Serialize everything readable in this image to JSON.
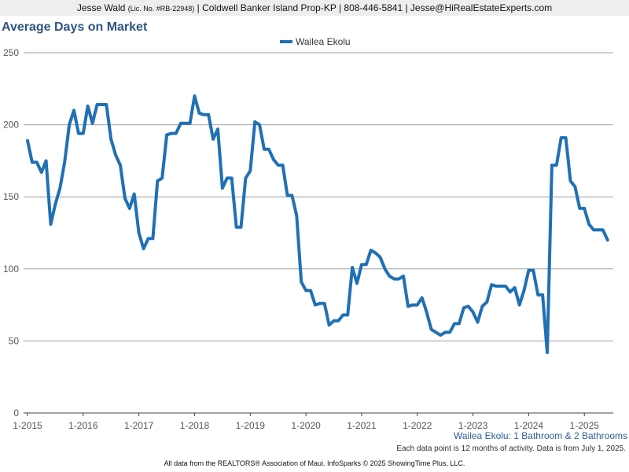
{
  "header": {
    "name": "Jesse Wald",
    "license": "(Lic. No. #RB-22948)",
    "rest": "| Coldwell Banker Island Prop-KP | 808-446-5841 | Jesse@HiRealEstateExperts.com"
  },
  "chart_data": {
    "type": "line",
    "title": "Average Days on Market",
    "xlabel": "",
    "ylabel": "",
    "ylim": [
      0,
      250
    ],
    "yticks": [
      "0",
      "50",
      "100",
      "150",
      "200",
      "250"
    ],
    "xticks": [
      "1-2015",
      "1-2016",
      "1-2017",
      "1-2018",
      "1-2019",
      "1-2020",
      "1-2021",
      "1-2022",
      "1-2023",
      "1-2024",
      "1-2025"
    ],
    "x_start": "1-2015",
    "x_end": "7-2025",
    "grid": true,
    "legend": "top-center",
    "series": [
      {
        "name": "Wailea Ekolu",
        "color": "#2070b4",
        "values": [
          189,
          174,
          174,
          167,
          175,
          131,
          145,
          156,
          174,
          200,
          210,
          194,
          194,
          213,
          201,
          214,
          214,
          214,
          190,
          179,
          172,
          149,
          142,
          152,
          125,
          114,
          121,
          121,
          161,
          163,
          193,
          194,
          194,
          201,
          201,
          201,
          220,
          208,
          207,
          207,
          190,
          197,
          156,
          163,
          163,
          129,
          129,
          163,
          168,
          202,
          200,
          183,
          183,
          176,
          172,
          172,
          151,
          151,
          137,
          91,
          85,
          85,
          75,
          76,
          76,
          61,
          64,
          64,
          68,
          68,
          101,
          90,
          103,
          103,
          113,
          111,
          108,
          100,
          95,
          93,
          93,
          95,
          74,
          75,
          75,
          80,
          70,
          58,
          56,
          54,
          56,
          56,
          62,
          62,
          73,
          74,
          70,
          63,
          74,
          77,
          89,
          88,
          88,
          88,
          84,
          87,
          75,
          85,
          99,
          99,
          82,
          82,
          42,
          172,
          172,
          191,
          191,
          161,
          157,
          142,
          142,
          131,
          127,
          127,
          127,
          120
        ]
      }
    ]
  },
  "subtitle": "Wailea Ekolu: 1 Bathroom & 2 Bathrooms",
  "note": "Each data point is 12 months of activity. Data is from July 1, 2025.",
  "footer": "All data from the REALTORS® Association of Maui. InfoSparks © 2025 ShowingTime Plus, LLC."
}
